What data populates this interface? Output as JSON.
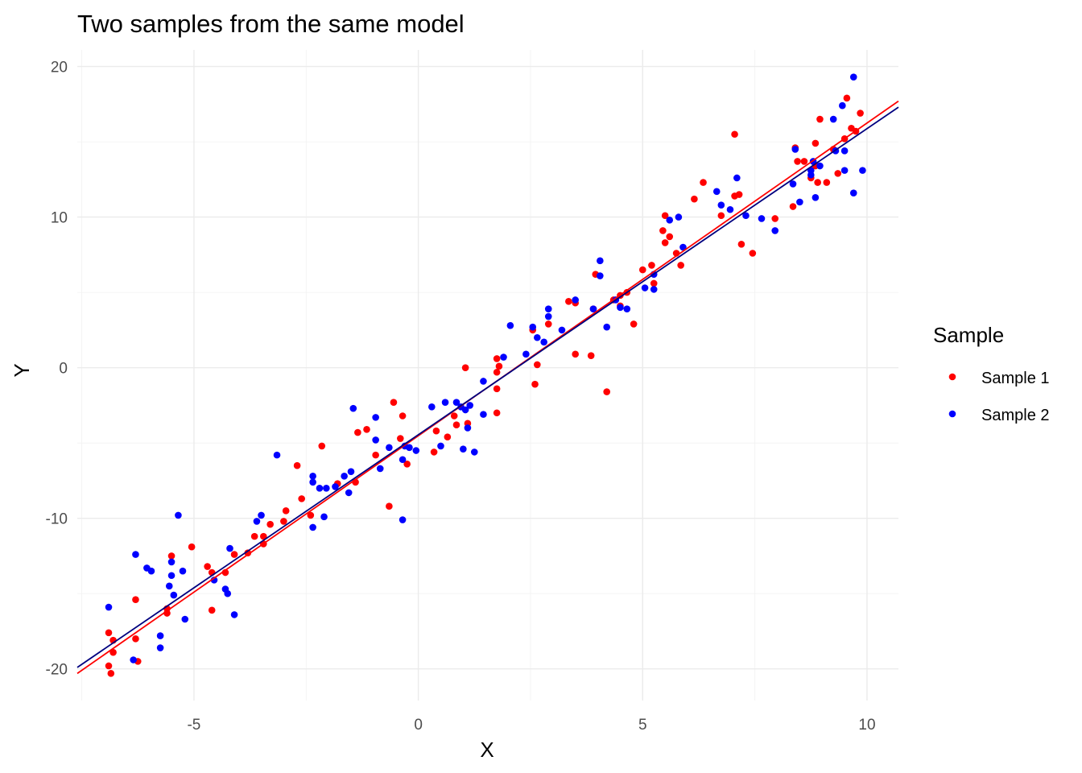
{
  "chart_data": {
    "type": "scatter",
    "title": "Two samples from the same model",
    "xlabel": "X",
    "ylabel": "Y",
    "xlim": [
      -7.6,
      10.7
    ],
    "ylim": [
      -22.1,
      21.1
    ],
    "x_ticks": [
      -5,
      0,
      5,
      10
    ],
    "y_ticks": [
      -20,
      -10,
      0,
      10,
      20
    ],
    "x_tick_labels": [
      "-5",
      "0",
      "5",
      "10"
    ],
    "y_tick_labels": [
      "-20",
      "-10",
      "0",
      "10",
      "20"
    ],
    "grid": true,
    "legend": {
      "title": "Sample",
      "position": "right"
    },
    "series": [
      {
        "name": "Sample 1",
        "color": "#ff0000",
        "fit_line": {
          "x": [
            -7.6,
            10.7
          ],
          "y": [
            -20.3,
            17.7
          ]
        },
        "points": [
          [
            -6.9,
            -17.6
          ],
          [
            -6.9,
            -19.8
          ],
          [
            -6.85,
            -20.3
          ],
          [
            -6.8,
            -18.9
          ],
          [
            -6.8,
            -18.1
          ],
          [
            -6.3,
            -15.4
          ],
          [
            -6.3,
            -18.0
          ],
          [
            -6.25,
            -19.5
          ],
          [
            -5.6,
            -16.3
          ],
          [
            -5.6,
            -16.0
          ],
          [
            -5.5,
            -12.5
          ],
          [
            -5.05,
            -11.9
          ],
          [
            -4.7,
            -13.2
          ],
          [
            -4.6,
            -13.6
          ],
          [
            -4.6,
            -16.1
          ],
          [
            -4.3,
            -13.6
          ],
          [
            -4.1,
            -12.4
          ],
          [
            -3.8,
            -12.3
          ],
          [
            -3.65,
            -11.2
          ],
          [
            -3.45,
            -11.2
          ],
          [
            -3.45,
            -11.7
          ],
          [
            -3.3,
            -10.4
          ],
          [
            -3.0,
            -10.2
          ],
          [
            -2.95,
            -9.5
          ],
          [
            -2.7,
            -6.5
          ],
          [
            -2.6,
            -8.7
          ],
          [
            -2.4,
            -9.8
          ],
          [
            -2.15,
            -5.2
          ],
          [
            -1.8,
            -7.7
          ],
          [
            -1.4,
            -7.6
          ],
          [
            -1.35,
            -4.3
          ],
          [
            -1.15,
            -4.1
          ],
          [
            -0.95,
            -5.8
          ],
          [
            -0.65,
            -9.2
          ],
          [
            -0.55,
            -2.3
          ],
          [
            -0.4,
            -4.7
          ],
          [
            -0.35,
            -3.2
          ],
          [
            -0.25,
            -6.4
          ],
          [
            0.35,
            -5.6
          ],
          [
            0.4,
            -4.2
          ],
          [
            0.65,
            -4.6
          ],
          [
            0.8,
            -3.2
          ],
          [
            0.85,
            -3.8
          ],
          [
            1.05,
            0.0
          ],
          [
            1.1,
            -3.7
          ],
          [
            1.75,
            0.6
          ],
          [
            1.75,
            -1.4
          ],
          [
            1.75,
            -3.0
          ],
          [
            1.75,
            -0.3
          ],
          [
            1.8,
            0.1
          ],
          [
            2.55,
            2.5
          ],
          [
            2.6,
            -1.1
          ],
          [
            2.65,
            0.2
          ],
          [
            2.9,
            2.9
          ],
          [
            3.35,
            4.4
          ],
          [
            3.5,
            4.3
          ],
          [
            3.5,
            0.9
          ],
          [
            3.85,
            0.8
          ],
          [
            3.9,
            3.9
          ],
          [
            3.95,
            6.2
          ],
          [
            4.2,
            -1.6
          ],
          [
            4.35,
            4.5
          ],
          [
            4.5,
            4.8
          ],
          [
            4.5,
            4.1
          ],
          [
            4.65,
            5.0
          ],
          [
            4.8,
            2.9
          ],
          [
            5.0,
            6.5
          ],
          [
            5.2,
            6.8
          ],
          [
            5.25,
            5.6
          ],
          [
            5.45,
            9.1
          ],
          [
            5.5,
            10.1
          ],
          [
            5.5,
            8.3
          ],
          [
            5.6,
            8.7
          ],
          [
            5.75,
            7.6
          ],
          [
            5.85,
            6.8
          ],
          [
            6.15,
            11.2
          ],
          [
            6.35,
            12.3
          ],
          [
            6.75,
            10.1
          ],
          [
            7.05,
            15.5
          ],
          [
            7.05,
            11.4
          ],
          [
            7.15,
            11.5
          ],
          [
            7.2,
            8.2
          ],
          [
            7.45,
            7.6
          ],
          [
            7.95,
            9.9
          ],
          [
            8.35,
            10.7
          ],
          [
            8.4,
            14.6
          ],
          [
            8.45,
            13.7
          ],
          [
            8.6,
            13.7
          ],
          [
            8.75,
            12.6
          ],
          [
            8.85,
            13.4
          ],
          [
            8.85,
            14.9
          ],
          [
            8.9,
            12.3
          ],
          [
            8.95,
            16.5
          ],
          [
            9.1,
            12.3
          ],
          [
            9.25,
            14.5
          ],
          [
            9.35,
            12.9
          ],
          [
            9.5,
            15.2
          ],
          [
            9.55,
            17.9
          ],
          [
            9.65,
            15.9
          ],
          [
            9.75,
            15.7
          ],
          [
            9.85,
            16.9
          ]
        ]
      },
      {
        "name": "Sample 2",
        "color": "#0000ff",
        "fit_line": {
          "x": [
            -7.6,
            10.7
          ],
          "y": [
            -19.9,
            17.3
          ]
        },
        "points": [
          [
            -6.9,
            -15.9
          ],
          [
            -6.35,
            -19.4
          ],
          [
            -6.3,
            -12.4
          ],
          [
            -6.05,
            -13.3
          ],
          [
            -5.95,
            -13.5
          ],
          [
            -5.75,
            -17.8
          ],
          [
            -5.75,
            -18.6
          ],
          [
            -5.55,
            -14.5
          ],
          [
            -5.5,
            -12.9
          ],
          [
            -5.5,
            -13.8
          ],
          [
            -5.45,
            -15.1
          ],
          [
            -5.35,
            -9.8
          ],
          [
            -5.25,
            -13.5
          ],
          [
            -5.2,
            -16.7
          ],
          [
            -4.55,
            -14.1
          ],
          [
            -4.3,
            -14.7
          ],
          [
            -4.25,
            -15.0
          ],
          [
            -4.2,
            -12.0
          ],
          [
            -4.1,
            -16.4
          ],
          [
            -3.6,
            -10.2
          ],
          [
            -3.5,
            -9.8
          ],
          [
            -3.15,
            -5.8
          ],
          [
            -2.35,
            -10.6
          ],
          [
            -2.35,
            -7.6
          ],
          [
            -2.35,
            -7.2
          ],
          [
            -2.2,
            -8.0
          ],
          [
            -2.1,
            -9.9
          ],
          [
            -2.05,
            -8.0
          ],
          [
            -1.85,
            -7.9
          ],
          [
            -1.65,
            -7.2
          ],
          [
            -1.55,
            -8.3
          ],
          [
            -1.5,
            -6.9
          ],
          [
            -1.45,
            -2.7
          ],
          [
            -0.95,
            -3.3
          ],
          [
            -0.95,
            -4.8
          ],
          [
            -0.85,
            -6.7
          ],
          [
            -0.65,
            -5.3
          ],
          [
            -0.35,
            -10.1
          ],
          [
            -0.35,
            -6.1
          ],
          [
            -0.3,
            -5.2
          ],
          [
            -0.2,
            -5.3
          ],
          [
            -0.05,
            -5.5
          ],
          [
            0.3,
            -2.6
          ],
          [
            0.5,
            -5.2
          ],
          [
            0.6,
            -2.3
          ],
          [
            0.85,
            -2.3
          ],
          [
            0.95,
            -2.6
          ],
          [
            1.0,
            -5.4
          ],
          [
            1.05,
            -2.8
          ],
          [
            1.1,
            -4.0
          ],
          [
            1.15,
            -2.5
          ],
          [
            1.25,
            -5.6
          ],
          [
            1.45,
            -0.9
          ],
          [
            1.45,
            -3.1
          ],
          [
            1.9,
            0.7
          ],
          [
            2.05,
            2.8
          ],
          [
            2.4,
            0.9
          ],
          [
            2.55,
            2.7
          ],
          [
            2.65,
            2.0
          ],
          [
            2.8,
            1.7
          ],
          [
            2.9,
            3.9
          ],
          [
            2.9,
            3.4
          ],
          [
            3.2,
            2.5
          ],
          [
            3.5,
            4.5
          ],
          [
            3.9,
            3.9
          ],
          [
            4.05,
            7.1
          ],
          [
            4.05,
            6.1
          ],
          [
            4.2,
            2.7
          ],
          [
            4.4,
            4.5
          ],
          [
            4.5,
            4.0
          ],
          [
            4.65,
            3.9
          ],
          [
            5.05,
            5.3
          ],
          [
            5.25,
            5.2
          ],
          [
            5.25,
            6.2
          ],
          [
            5.6,
            9.8
          ],
          [
            5.8,
            10.0
          ],
          [
            5.9,
            8.0
          ],
          [
            6.65,
            11.7
          ],
          [
            6.75,
            10.8
          ],
          [
            6.95,
            10.5
          ],
          [
            7.1,
            12.6
          ],
          [
            7.3,
            10.1
          ],
          [
            7.65,
            9.9
          ],
          [
            7.95,
            9.1
          ],
          [
            8.35,
            12.2
          ],
          [
            8.4,
            14.5
          ],
          [
            8.5,
            11.0
          ],
          [
            8.75,
            12.8
          ],
          [
            8.75,
            13.1
          ],
          [
            8.8,
            13.7
          ],
          [
            8.85,
            11.3
          ],
          [
            8.95,
            13.4
          ],
          [
            9.25,
            16.5
          ],
          [
            9.3,
            14.4
          ],
          [
            9.45,
            17.4
          ],
          [
            9.5,
            13.1
          ],
          [
            9.5,
            14.4
          ],
          [
            9.7,
            11.6
          ],
          [
            9.7,
            19.3
          ],
          [
            9.9,
            13.1
          ]
        ]
      }
    ]
  }
}
